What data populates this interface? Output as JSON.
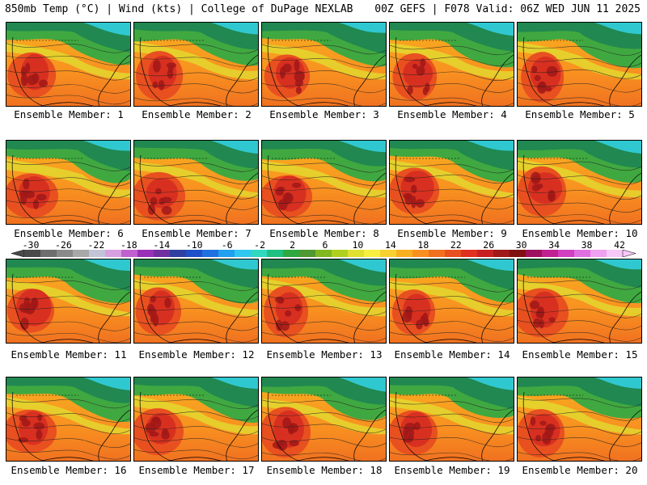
{
  "header": {
    "left": "850mb Temp (°C) | Wind (kts) | College of DuPage NEXLAB",
    "right": "00Z GEFS | F078 Valid: 06Z WED JUN 11 2025"
  },
  "members": [
    "Ensemble Member: 1",
    "Ensemble Member: 2",
    "Ensemble Member: 3",
    "Ensemble Member: 4",
    "Ensemble Member: 5",
    "Ensemble Member: 6",
    "Ensemble Member: 7",
    "Ensemble Member: 8",
    "Ensemble Member: 9",
    "Ensemble Member: 10",
    "Ensemble Member: 11",
    "Ensemble Member: 12",
    "Ensemble Member: 13",
    "Ensemble Member: 14",
    "Ensemble Member: 15",
    "Ensemble Member: 16",
    "Ensemble Member: 17",
    "Ensemble Member: 18",
    "Ensemble Member: 19",
    "Ensemble Member: 20"
  ],
  "colorbar": {
    "ticks": [
      "-30",
      "-26",
      "-22",
      "-18",
      "-14",
      "-10",
      "-6",
      "-2",
      "2",
      "6",
      "10",
      "14",
      "18",
      "22",
      "26",
      "30",
      "34",
      "38",
      "42"
    ],
    "colors": [
      "#4a4a4a",
      "#6e6e6e",
      "#8a8a8a",
      "#a8a8a8",
      "#c4c4d8",
      "#d8a0e0",
      "#c060d0",
      "#9a30b8",
      "#7030a0",
      "#3040a0",
      "#2050c8",
      "#2070e0",
      "#20a0f0",
      "#30c8f0",
      "#30d8c0",
      "#20c080",
      "#30a840",
      "#509830",
      "#80b820",
      "#b0d020",
      "#e0e030",
      "#f8f040",
      "#f8d030",
      "#f8b020",
      "#f89020",
      "#f07020",
      "#e85020",
      "#e03020",
      "#c82020",
      "#a01818",
      "#801010",
      "#a01060",
      "#c02090",
      "#d040c0",
      "#e070e0",
      "#f0a0f0",
      "#f8c8f8"
    ]
  }
}
